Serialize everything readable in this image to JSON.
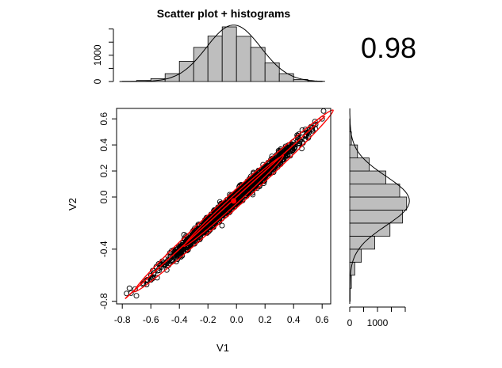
{
  "chart_data": {
    "type": "scatter",
    "title": "Scatter plot + histograms",
    "correlation_label": "0.98",
    "xlabel": "V1",
    "ylabel": "V2",
    "xlim": [
      -0.84,
      0.66
    ],
    "ylim": [
      -0.82,
      0.68
    ],
    "x_ticks": [
      -0.8,
      -0.6,
      -0.4,
      -0.2,
      0.0,
      0.2,
      0.4,
      0.6
    ],
    "x_tick_labels": [
      "-0.8",
      "-0.6",
      "-0.4",
      "-0.2",
      "0.0",
      "0.2",
      "0.4",
      "0.6"
    ],
    "y_ticks": [
      -0.8,
      -0.4,
      0.0,
      0.2,
      0.4,
      0.6
    ],
    "y_tick_labels": [
      "-0.8",
      "-0.4",
      "0.0",
      "0.2",
      "0.4",
      "0.6"
    ],
    "grid": false,
    "point_style": "open-circle",
    "regression_line": {
      "from": [
        -0.78,
        -0.78
      ],
      "to": [
        0.62,
        0.62
      ],
      "color": "#ff0000"
    },
    "ellipse": {
      "center": [
        -0.02,
        -0.03
      ],
      "color": "#ff0000"
    },
    "point_cloud": {
      "slope": 1.0,
      "intercept": -0.005,
      "spread": 0.028,
      "x_center": -0.02,
      "x_sd": 0.23
    },
    "outliers": [
      [
        0.61,
        0.66
      ],
      [
        0.6,
        0.6
      ],
      [
        0.55,
        0.58
      ],
      [
        -0.75,
        -0.7
      ],
      [
        -0.77,
        -0.74
      ],
      [
        0.48,
        0.44
      ]
    ],
    "top_histogram": {
      "bin_edges": [
        -0.8,
        -0.7,
        -0.6,
        -0.5,
        -0.4,
        -0.3,
        -0.2,
        -0.1,
        0.0,
        0.1,
        0.2,
        0.3,
        0.4,
        0.5,
        0.6
      ],
      "counts": [
        10,
        40,
        110,
        300,
        770,
        1300,
        1730,
        2080,
        1720,
        1300,
        710,
        300,
        80,
        15
      ],
      "y_ticks": [
        0,
        1000
      ],
      "y_tick_labels": [
        "0",
        "1000"
      ],
      "y_max": 2200
    },
    "right_histogram": {
      "bin_edges": [
        -0.8,
        -0.7,
        -0.6,
        -0.5,
        -0.4,
        -0.3,
        -0.2,
        -0.1,
        0.0,
        0.1,
        0.2,
        0.3,
        0.4,
        0.5,
        0.6,
        0.7
      ],
      "counts": [
        15,
        60,
        180,
        420,
        900,
        1450,
        1900,
        2050,
        1800,
        1300,
        700,
        280,
        60,
        10,
        0
      ],
      "x_ticks": [
        0,
        500,
        1000,
        1500,
        2000
      ],
      "x_tick_labels": [
        "0",
        "1000"
      ],
      "x_label_values": [
        0,
        1000
      ],
      "x_max": 2200
    }
  }
}
